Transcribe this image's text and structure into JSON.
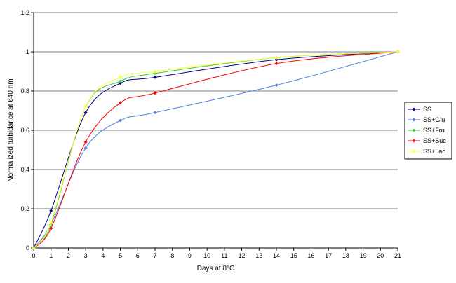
{
  "chart_data": {
    "type": "line",
    "title": "",
    "xlabel": "Days at 8°C",
    "ylabel": "Normalized turbidance at 640 nm",
    "xlim": [
      0,
      21
    ],
    "ylim": [
      0,
      1.2
    ],
    "x_ticks": [
      "0",
      "1",
      "2",
      "3",
      "4",
      "5",
      "6",
      "7",
      "8",
      "9",
      "10",
      "11",
      "12",
      "13",
      "14",
      "15",
      "16",
      "17",
      "18",
      "19",
      "20",
      "21"
    ],
    "y_ticks": [
      "0",
      "0,2",
      "0,4",
      "0,6",
      "0,8",
      "1",
      "1,2"
    ],
    "grid": "horizontal",
    "legend_position": "right",
    "smooth": true,
    "series": [
      {
        "name": "SS",
        "color": "#000080",
        "x": [
          0,
          1,
          3,
          5,
          7,
          14,
          21
        ],
        "y": [
          0,
          0.19,
          0.69,
          0.84,
          0.87,
          0.96,
          1
        ]
      },
      {
        "name": "SS+Glu",
        "color": "#4f81e6",
        "x": [
          0,
          1,
          3,
          5,
          7,
          14,
          21
        ],
        "y": [
          0,
          0.12,
          0.51,
          0.65,
          0.69,
          0.83,
          1
        ]
      },
      {
        "name": "SS+Fru",
        "color": "#33cc33",
        "x": [
          0,
          1,
          3,
          5,
          7,
          14,
          21
        ],
        "y": [
          0,
          0.12,
          0.72,
          0.85,
          0.89,
          0.97,
          1
        ]
      },
      {
        "name": "SS+Suc",
        "color": "#ff0000",
        "x": [
          0,
          1,
          3,
          5,
          7,
          14,
          21
        ],
        "y": [
          0,
          0.1,
          0.54,
          0.74,
          0.79,
          0.94,
          1
        ]
      },
      {
        "name": "SS+Lac",
        "color": "#ffff33",
        "x": [
          0,
          1,
          3,
          5,
          7,
          14,
          21
        ],
        "y": [
          0,
          0.13,
          0.72,
          0.87,
          0.9,
          0.97,
          1
        ]
      }
    ]
  }
}
